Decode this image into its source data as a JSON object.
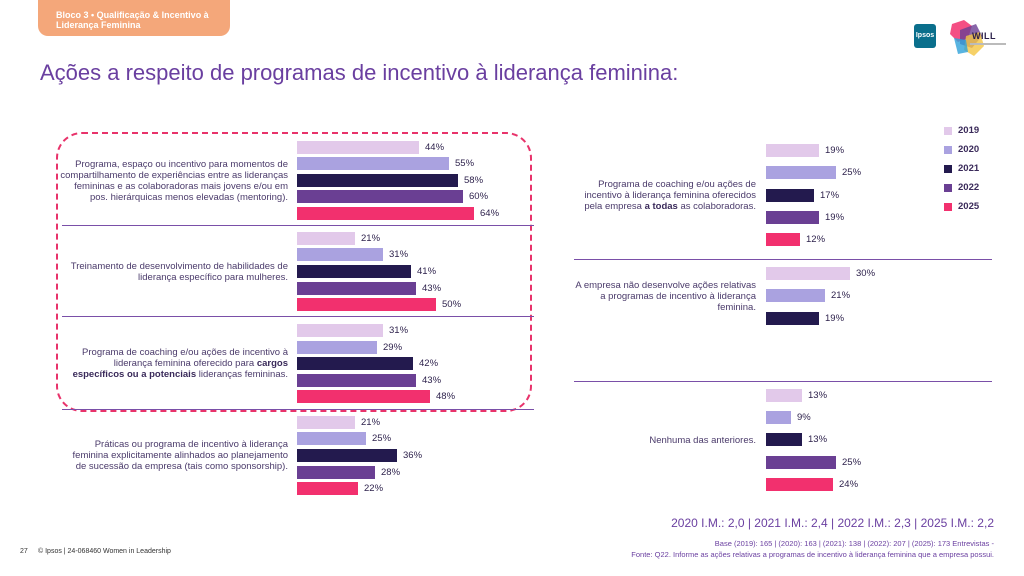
{
  "header": {
    "section_tab": "Bloco 3 • Qualificação & Incentivo à Liderança Feminina",
    "title": "Ações a respeito de programas de incentivo à liderança feminina:",
    "logo_ipsos": "Ipsos",
    "logo_will": "WILL"
  },
  "colors": {
    "2019": "#e2c9ea",
    "2020": "#aaa2e0",
    "2021": "#231a4e",
    "2022": "#6a3f93",
    "2025": "#f2306e",
    "highlight_border": "#e8336b"
  },
  "chart_data": {
    "type": "bar",
    "orientation": "horizontal",
    "series_names": [
      "2019",
      "2020",
      "2021",
      "2022",
      "2025"
    ],
    "value_suffix": "%",
    "categories": [
      {
        "label_parts": [
          "Programa, espaço ou incentivo para momentos de compartilhamento de experiências entre as lideranças femininas e as colaboradoras mais jovens e/ou em pos. hierárquicas menos elevadas (mentoring)."
        ],
        "values": [
          44,
          55,
          58,
          60,
          64
        ]
      },
      {
        "label_parts": [
          "Treinamento de desenvolvimento de habilidades de liderança específico para mulheres."
        ],
        "values": [
          21,
          31,
          41,
          43,
          50
        ]
      },
      {
        "label_parts": [
          "Programa de coaching e/ou ações de incentivo à liderança feminina oferecido para ",
          "cargos específicos ou a potenciais",
          " lideranças femininas."
        ],
        "values": [
          31,
          29,
          42,
          43,
          48
        ]
      },
      {
        "label_parts": [
          "Práticas ou programa de incentivo à liderança feminina explicitamente alinhados ao planejamento de sucessão da empresa (tais como sponsorship)."
        ],
        "values": [
          21,
          25,
          36,
          28,
          22
        ]
      },
      {
        "label_parts": [
          "Programa de coaching e/ou ações de incentivo à liderança feminina oferecidos pela empresa ",
          "a todas",
          " as colaboradoras."
        ],
        "values": [
          19,
          25,
          17,
          19,
          12
        ]
      },
      {
        "label_parts": [
          "A empresa não desenvolve ações relativas a programas de incentivo à liderança feminina."
        ],
        "values": [
          30,
          21,
          19
        ]
      },
      {
        "label_parts": [
          "Nenhuma das anteriores."
        ],
        "values": [
          13,
          9,
          13,
          25,
          24
        ]
      }
    ],
    "series_for_category_6": [
      "2019",
      "2020",
      "2021"
    ],
    "legend": [
      "2019",
      "2020",
      "2021",
      "2022",
      "2025"
    ],
    "legend_position": "top-right"
  },
  "footer": {
    "im_line": "2020 I.M.: 2,0 | 2021 I.M.: 2,4 | 2022 I.M.: 2,3 | 2025 I.M.: 2,2",
    "base_line": "Base (2019): 165 | (2020): 163 | (2021): 138 | (2022): 207 | (2025): 173  Entrevistas -",
    "source_line": "Fonte: Q22. Informe as ações relativas a programas de incentivo à liderança feminina que a empresa possui.",
    "page_number": "27",
    "copyright": "© Ipsos | 24-068460 Women in Leadership"
  }
}
